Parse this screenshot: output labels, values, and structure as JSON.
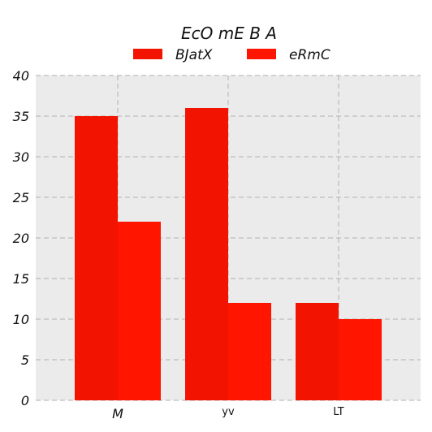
{
  "chart_data": {
    "type": "bar",
    "title": "EcO mE B A",
    "xlabel": "",
    "ylabel": "",
    "categories": [
      "M",
      "yv",
      "LT"
    ],
    "series": [
      {
        "name": "BJatX",
        "values": [
          35,
          36,
          12
        ],
        "color": "#f21300"
      },
      {
        "name": "eRmC",
        "values": [
          22,
          12,
          10
        ],
        "color": "#ff1500"
      }
    ],
    "ylim": [
      0,
      40
    ],
    "yticks": [
      "0",
      "5",
      "10",
      "15",
      "20",
      "25",
      "30",
      "35",
      "40"
    ],
    "grid": true,
    "legend_position": "top",
    "background_color": "#ebebeb",
    "grid_color": "#b0b0b0"
  }
}
